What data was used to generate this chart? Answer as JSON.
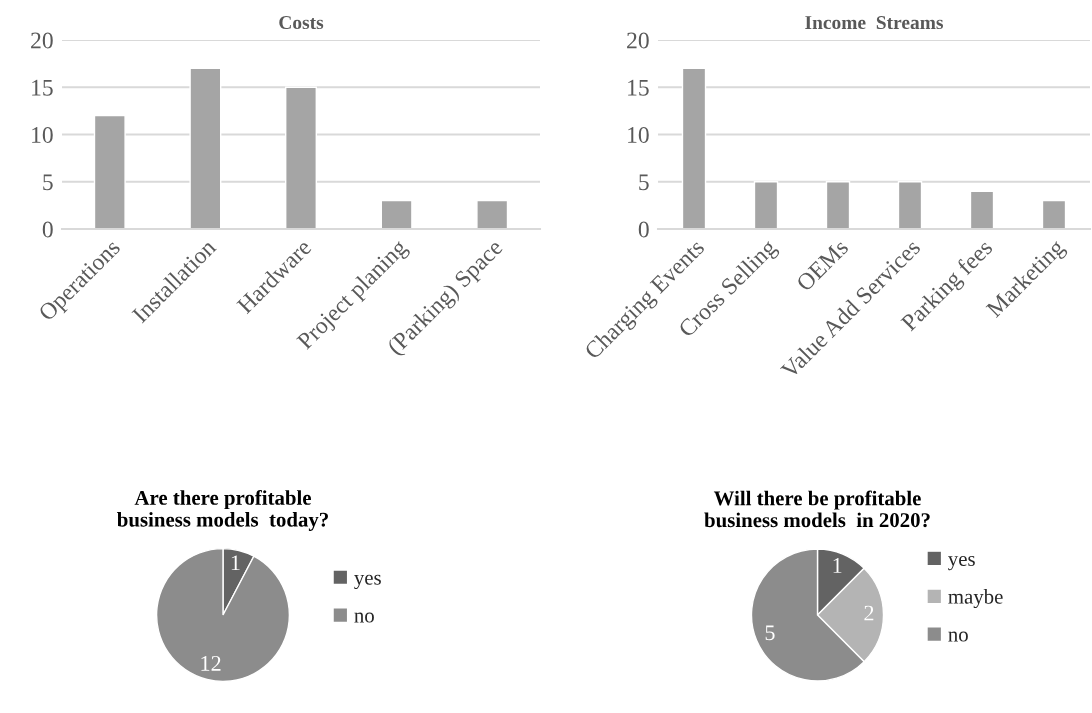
{
  "chart_data": [
    {
      "type": "bar",
      "title": "Costs",
      "categories": [
        "Operations",
        "Installation",
        "Hardware",
        "Project planing",
        "(Parking) Space"
      ],
      "values": [
        12,
        17,
        15,
        3,
        3
      ],
      "color": "#a5a5a5",
      "ylim": [
        0,
        20
      ],
      "yticks": [
        0,
        5,
        10,
        15,
        20
      ],
      "grid": "y"
    },
    {
      "type": "bar",
      "title": "Income  Streams",
      "categories": [
        "Charging Events",
        "Cross Selling",
        "OEMs",
        "Value Add Services",
        "Parking fees",
        "Marketing"
      ],
      "values": [
        17,
        5,
        5,
        5,
        4,
        3
      ],
      "color": "#a5a5a5",
      "ylim": [
        0,
        20
      ],
      "yticks": [
        0,
        5,
        10,
        15,
        20
      ],
      "grid": "y"
    },
    {
      "type": "pie",
      "title": "Are there profitable\nbusiness models  today?",
      "categories": [
        "yes",
        "no"
      ],
      "values": [
        1,
        12
      ],
      "colors": [
        "#636363",
        "#8c8c8c"
      ],
      "data_labels": true,
      "legend": "right"
    },
    {
      "type": "pie",
      "title": "Will there be profitable\nbusiness models  in 2020?",
      "categories": [
        "yes",
        "maybe",
        "no"
      ],
      "values": [
        1,
        2,
        5
      ],
      "colors": [
        "#636363",
        "#b4b4b4",
        "#8c8c8c"
      ],
      "data_labels": true,
      "legend": "right"
    }
  ]
}
